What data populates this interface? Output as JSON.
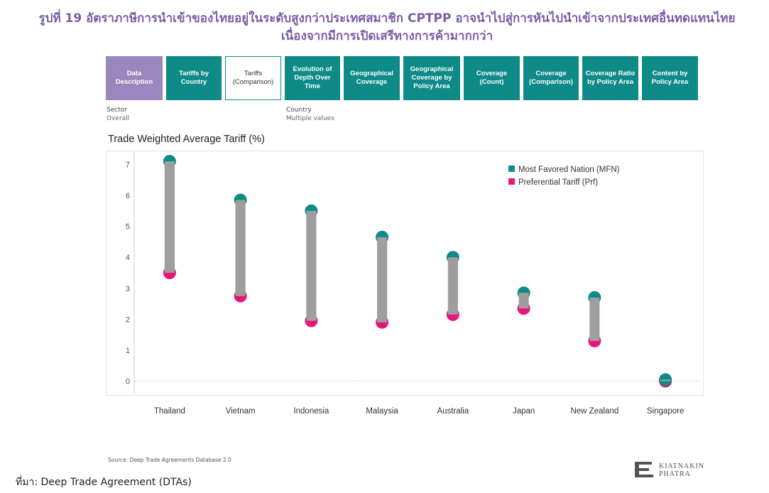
{
  "title": {
    "line1": "รูปที่ 19 อัตราภาษีการนำเข้าของไทยอยู่ในระดับสูงกว่าประเทศสมาชิก CPTPP อาจนำไปสู่การหันไปนำเข้าจากประเทศอื่นทดแทนไทย",
    "line2": "เนื่องจากมีการเปิดเสรีทางการค้ามากกว่า"
  },
  "tabs": [
    {
      "label": "Data\nDescription",
      "style": "purple"
    },
    {
      "label": "Tariffs by\nCountry",
      "style": "teal"
    },
    {
      "label": "Tariffs\n(Comparison)",
      "style": "outline"
    },
    {
      "label": "Evolution of\nDepth Over\nTime",
      "style": "teal"
    },
    {
      "label": "Geographical\nCoverage",
      "style": "teal"
    },
    {
      "label": "Geographical\nCoverage by\nPolicy Area",
      "style": "teal"
    },
    {
      "label": "Coverage\n(Count)",
      "style": "teal"
    },
    {
      "label": "Coverage\n(Comparison)",
      "style": "teal"
    },
    {
      "label": "Coverage Ratio\nby Policy Area",
      "style": "teal"
    },
    {
      "label": "Content by\nPolicy Area",
      "style": "teal"
    }
  ],
  "filters": {
    "sector_label": "Sector",
    "sector_value": "Overall",
    "country_label": "Country",
    "country_value": "Multiple values"
  },
  "chart_data": {
    "type": "scatter",
    "title": "Trade Weighted Average Tariff (%)",
    "categories": [
      "Thailand",
      "Vietnam",
      "Indonesia",
      "Malaysia",
      "Australia",
      "Japan",
      "New Zealand",
      "Singapore"
    ],
    "series": [
      {
        "name": "Most Favored Nation (MFN)",
        "color": "#0e8a87",
        "values": [
          7.1,
          5.85,
          5.5,
          4.65,
          4.0,
          2.85,
          2.7,
          0.05
        ]
      },
      {
        "name": "Preferential Tariff (Prf)",
        "color": "#e8157a",
        "values": [
          3.5,
          2.75,
          1.95,
          1.9,
          2.15,
          2.35,
          1.3,
          0.0
        ]
      }
    ],
    "yticks": [
      0,
      1,
      2,
      3,
      4,
      5,
      6,
      7
    ],
    "ylim": [
      -0.4,
      7.4
    ],
    "grid": false,
    "legend_position": "top-right",
    "connector_color": "#9e9e9e"
  },
  "source_small": "Source: Deep Trade Agreements Database 2.0",
  "source": "ที่มา: Deep Trade Agreement (DTAs)",
  "logo": {
    "line1": "KIATNAKIN",
    "line2": "PHATRA"
  }
}
